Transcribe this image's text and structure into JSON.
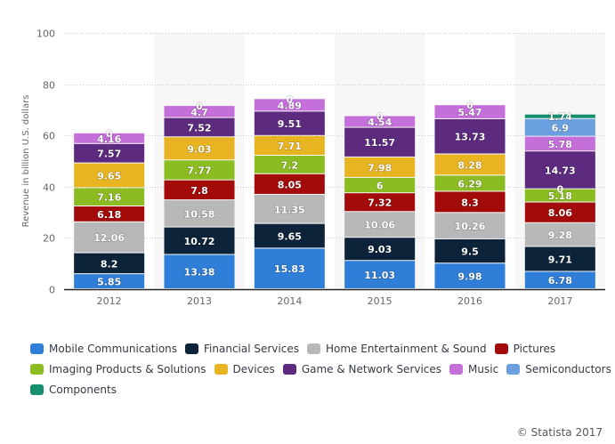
{
  "chart_data": {
    "type": "bar",
    "stacked": true,
    "title": "",
    "xlabel": "",
    "ylabel": "Revenue in billion U.S. dollars",
    "ylim": [
      0,
      100
    ],
    "yticks": [
      0,
      20,
      40,
      60,
      80,
      100
    ],
    "grid": true,
    "legend_position": "bottom",
    "categories": [
      "2012",
      "2013",
      "2014",
      "2015",
      "2016",
      "2017"
    ],
    "series": [
      {
        "name": "Mobile Communications",
        "color": "#2f7ed8",
        "values": [
          5.85,
          13.38,
          15.83,
          11.03,
          9.98,
          6.78
        ]
      },
      {
        "name": "Financial Services",
        "color": "#0d233a",
        "values": [
          8.2,
          10.72,
          9.65,
          9.03,
          9.5,
          9.71
        ]
      },
      {
        "name": "Home Entertainment & Sound",
        "color": "#b8b8b8",
        "values": [
          12.06,
          10.58,
          11.35,
          10.06,
          10.26,
          9.28
        ]
      },
      {
        "name": "Pictures",
        "color": "#a30b0b",
        "values": [
          6.18,
          7.8,
          8.05,
          7.32,
          8.3,
          8.06
        ]
      },
      {
        "name": "Imaging Products & Solutions",
        "color": "#8bbc21",
        "values": [
          7.16,
          7.77,
          7.2,
          6,
          6.29,
          5.18
        ]
      },
      {
        "name": "Devices",
        "color": "#e8b422",
        "values": [
          9.65,
          9.03,
          7.71,
          7.98,
          8.28,
          0
        ]
      },
      {
        "name": "Game & Network Services",
        "color": "#5c2a7e",
        "values": [
          7.57,
          7.52,
          9.51,
          11.57,
          13.73,
          14.73
        ]
      },
      {
        "name": "Music",
        "color": "#c56fdb",
        "values": [
          4.16,
          4.7,
          4.89,
          4.54,
          5.47,
          5.78
        ]
      },
      {
        "name": "Semiconductors",
        "color": "#6a9fe0",
        "values": [
          0,
          0,
          0,
          0,
          0,
          6.9
        ]
      },
      {
        "name": "Components",
        "color": "#168f6e",
        "values": [
          0,
          0,
          0,
          0,
          0,
          1.74
        ]
      }
    ],
    "zero_labels_shown": true
  },
  "credit": "© Statista 2017"
}
